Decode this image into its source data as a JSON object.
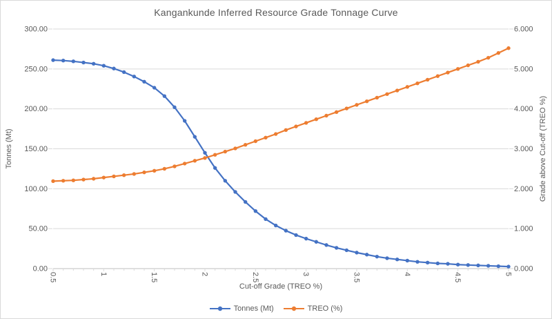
{
  "title": "Kangankunde Inferred Resource Grade Tonnage Curve",
  "colors": {
    "tonnes_series": "#4472C4",
    "treo_series": "#ED7D31",
    "gridline": "#D9D9D9",
    "axis_line": "#BFBFBF",
    "text": "#595959",
    "background": "#FFFFFF"
  },
  "legend": {
    "position": "bottom",
    "items": [
      {
        "label": "Tonnes (Mt)"
      },
      {
        "label": "TREO (%)"
      }
    ]
  },
  "chart_data": {
    "type": "line",
    "title": "Kangankunde Inferred Resource Grade Tonnage Curve",
    "xlabel": "Cut-off Grade (TREO %)",
    "ylabel_left": "Tonnes (Mt)",
    "ylabel_right": "Grade above Cut-off (TREO %)",
    "grid": "horizontal-only",
    "legend_position": "bottom",
    "xlim": [
      0.5,
      5
    ],
    "x_ticks": [
      0.5,
      1,
      1.5,
      2,
      2.5,
      3,
      3.5,
      4,
      4.5,
      5
    ],
    "x_minor_step": 0.1,
    "ylim_left": [
      0,
      300
    ],
    "ystep_left": 50,
    "y_decimals_left": 2,
    "ylim_right": [
      0,
      6
    ],
    "ystep_right": 1,
    "y_decimals_right": 3,
    "x": [
      0.5,
      0.6,
      0.7,
      0.8,
      0.9,
      1.0,
      1.1,
      1.2,
      1.3,
      1.4,
      1.5,
      1.6,
      1.7,
      1.8,
      1.9,
      2.0,
      2.1,
      2.2,
      2.3,
      2.4,
      2.5,
      2.6,
      2.7,
      2.8,
      2.9,
      3.0,
      3.1,
      3.2,
      3.3,
      3.4,
      3.5,
      3.6,
      3.7,
      3.8,
      3.9,
      4.0,
      4.1,
      4.2,
      4.3,
      4.4,
      4.5,
      4.6,
      4.7,
      4.8,
      4.9,
      5.0
    ],
    "series": [
      {
        "name": "Tonnes (Mt)",
        "axis": "left",
        "color": "#4472C4",
        "values": [
          261,
          260.5,
          259.5,
          258,
          256.5,
          254,
          250.5,
          246,
          240.5,
          234,
          226.5,
          216,
          202,
          185,
          165,
          145,
          126,
          110,
          96,
          83.5,
          72,
          62,
          54,
          47.5,
          42,
          37.5,
          33.5,
          29.5,
          26,
          23,
          20,
          17.5,
          15,
          13,
          11.5,
          10,
          8.5,
          7.5,
          6.5,
          6,
          5,
          4.5,
          4,
          3.5,
          3,
          2.5
        ]
      },
      {
        "name": "TREO (%)",
        "axis": "right",
        "color": "#ED7D31",
        "values": [
          2.19,
          2.2,
          2.21,
          2.23,
          2.25,
          2.28,
          2.31,
          2.34,
          2.37,
          2.41,
          2.45,
          2.5,
          2.56,
          2.63,
          2.7,
          2.77,
          2.85,
          2.93,
          3.01,
          3.1,
          3.19,
          3.28,
          3.37,
          3.47,
          3.56,
          3.65,
          3.74,
          3.83,
          3.92,
          4.01,
          4.1,
          4.19,
          4.28,
          4.37,
          4.46,
          4.55,
          4.64,
          4.73,
          4.82,
          4.91,
          5.0,
          5.09,
          5.18,
          5.28,
          5.4,
          5.52
        ]
      }
    ]
  }
}
